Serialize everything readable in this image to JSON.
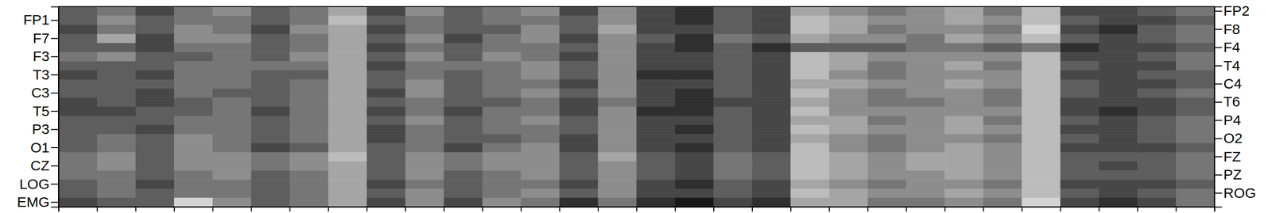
{
  "chart_data": {
    "type": "heatmap",
    "categories": [
      "FP2",
      "FP1",
      "F8",
      "F7",
      "F4",
      "F3",
      "T4",
      "T3",
      "C4",
      "C3",
      "T6",
      "T5",
      "P4",
      "P3",
      "O2",
      "O1",
      "FZ",
      "CZ",
      "PZ",
      "LOG",
      "ROG",
      "EMG"
    ],
    "xlim": [
      0,
      30
    ],
    "xticks": [
      0,
      1,
      2,
      3,
      4,
      5,
      6,
      7,
      8,
      9,
      10,
      11,
      12,
      13,
      14,
      15,
      16,
      17,
      18,
      19,
      20,
      21,
      22,
      23,
      24,
      25,
      26,
      27,
      28,
      29,
      30
    ],
    "tick_labels": "y",
    "color_range": [
      0,
      1
    ],
    "values": [
      [
        0.6,
        0.5,
        0.7,
        0.5,
        0.4,
        0.6,
        0.5,
        0.3,
        0.7,
        0.4,
        0.6,
        0.5,
        0.4,
        0.7,
        0.4,
        0.7,
        0.8,
        0.6,
        0.7,
        0.3,
        0.4,
        0.5,
        0.4,
        0.3,
        0.5,
        0.2,
        0.7,
        0.7,
        0.6,
        0.5
      ],
      [
        0.6,
        0.4,
        0.6,
        0.5,
        0.5,
        0.6,
        0.5,
        0.2,
        0.6,
        0.5,
        0.6,
        0.5,
        0.5,
        0.6,
        0.4,
        0.7,
        0.8,
        0.6,
        0.7,
        0.2,
        0.3,
        0.4,
        0.4,
        0.3,
        0.4,
        0.2,
        0.6,
        0.7,
        0.7,
        0.6
      ],
      [
        0.7,
        0.5,
        0.6,
        0.4,
        0.5,
        0.7,
        0.4,
        0.3,
        0.7,
        0.5,
        0.6,
        0.6,
        0.4,
        0.6,
        0.3,
        0.7,
        0.7,
        0.6,
        0.7,
        0.2,
        0.3,
        0.5,
        0.4,
        0.4,
        0.5,
        0.1,
        0.7,
        0.8,
        0.6,
        0.5
      ],
      [
        0.6,
        0.3,
        0.7,
        0.4,
        0.4,
        0.6,
        0.5,
        0.3,
        0.6,
        0.4,
        0.7,
        0.5,
        0.4,
        0.7,
        0.4,
        0.6,
        0.8,
        0.5,
        0.6,
        0.3,
        0.4,
        0.4,
        0.5,
        0.3,
        0.4,
        0.2,
        0.6,
        0.7,
        0.6,
        0.5
      ],
      [
        0.6,
        0.6,
        0.7,
        0.5,
        0.5,
        0.6,
        0.5,
        0.3,
        0.7,
        0.5,
        0.6,
        0.5,
        0.5,
        0.6,
        0.4,
        0.7,
        0.8,
        0.6,
        0.8,
        0.6,
        0.6,
        0.6,
        0.5,
        0.5,
        0.6,
        0.5,
        0.8,
        0.7,
        0.7,
        0.6
      ],
      [
        0.5,
        0.4,
        0.6,
        0.6,
        0.5,
        0.6,
        0.4,
        0.3,
        0.6,
        0.4,
        0.6,
        0.4,
        0.5,
        0.7,
        0.4,
        0.7,
        0.7,
        0.6,
        0.7,
        0.2,
        0.3,
        0.4,
        0.4,
        0.4,
        0.4,
        0.2,
        0.7,
        0.7,
        0.6,
        0.5
      ],
      [
        0.6,
        0.6,
        0.6,
        0.5,
        0.5,
        0.5,
        0.5,
        0.3,
        0.7,
        0.5,
        0.5,
        0.5,
        0.4,
        0.6,
        0.4,
        0.7,
        0.7,
        0.6,
        0.7,
        0.2,
        0.3,
        0.5,
        0.4,
        0.3,
        0.5,
        0.2,
        0.6,
        0.7,
        0.7,
        0.5
      ],
      [
        0.7,
        0.6,
        0.7,
        0.5,
        0.5,
        0.6,
        0.6,
        0.3,
        0.6,
        0.5,
        0.6,
        0.5,
        0.4,
        0.6,
        0.4,
        0.8,
        0.8,
        0.6,
        0.7,
        0.2,
        0.4,
        0.5,
        0.4,
        0.4,
        0.4,
        0.2,
        0.7,
        0.7,
        0.6,
        0.6
      ],
      [
        0.6,
        0.6,
        0.6,
        0.5,
        0.5,
        0.6,
        0.5,
        0.3,
        0.6,
        0.4,
        0.6,
        0.5,
        0.5,
        0.7,
        0.4,
        0.7,
        0.7,
        0.6,
        0.7,
        0.3,
        0.3,
        0.4,
        0.4,
        0.3,
        0.4,
        0.2,
        0.6,
        0.7,
        0.7,
        0.6
      ],
      [
        0.6,
        0.6,
        0.7,
        0.5,
        0.6,
        0.6,
        0.5,
        0.3,
        0.7,
        0.4,
        0.6,
        0.5,
        0.4,
        0.6,
        0.4,
        0.7,
        0.8,
        0.6,
        0.7,
        0.2,
        0.4,
        0.5,
        0.4,
        0.4,
        0.5,
        0.2,
        0.6,
        0.7,
        0.6,
        0.5
      ],
      [
        0.7,
        0.6,
        0.7,
        0.6,
        0.5,
        0.6,
        0.5,
        0.3,
        0.6,
        0.5,
        0.6,
        0.6,
        0.5,
        0.7,
        0.5,
        0.7,
        0.8,
        0.7,
        0.7,
        0.3,
        0.4,
        0.5,
        0.5,
        0.4,
        0.5,
        0.2,
        0.7,
        0.7,
        0.7,
        0.6
      ],
      [
        0.7,
        0.7,
        0.6,
        0.6,
        0.5,
        0.7,
        0.5,
        0.3,
        0.7,
        0.5,
        0.7,
        0.5,
        0.5,
        0.7,
        0.4,
        0.8,
        0.8,
        0.6,
        0.7,
        0.2,
        0.4,
        0.4,
        0.4,
        0.4,
        0.4,
        0.2,
        0.7,
        0.8,
        0.7,
        0.6
      ],
      [
        0.6,
        0.6,
        0.6,
        0.5,
        0.5,
        0.6,
        0.5,
        0.3,
        0.6,
        0.4,
        0.6,
        0.5,
        0.4,
        0.6,
        0.4,
        0.7,
        0.7,
        0.6,
        0.7,
        0.3,
        0.3,
        0.5,
        0.4,
        0.3,
        0.5,
        0.2,
        0.6,
        0.7,
        0.6,
        0.5
      ],
      [
        0.6,
        0.6,
        0.7,
        0.5,
        0.5,
        0.6,
        0.5,
        0.3,
        0.7,
        0.5,
        0.6,
        0.5,
        0.5,
        0.6,
        0.4,
        0.7,
        0.8,
        0.6,
        0.7,
        0.2,
        0.3,
        0.4,
        0.4,
        0.3,
        0.4,
        0.2,
        0.7,
        0.7,
        0.6,
        0.5
      ],
      [
        0.6,
        0.5,
        0.6,
        0.4,
        0.5,
        0.6,
        0.5,
        0.3,
        0.7,
        0.5,
        0.6,
        0.6,
        0.5,
        0.7,
        0.4,
        0.7,
        0.7,
        0.6,
        0.7,
        0.3,
        0.4,
        0.5,
        0.4,
        0.4,
        0.5,
        0.2,
        0.6,
        0.7,
        0.6,
        0.5
      ],
      [
        0.6,
        0.5,
        0.6,
        0.4,
        0.5,
        0.7,
        0.6,
        0.3,
        0.6,
        0.5,
        0.7,
        0.5,
        0.4,
        0.7,
        0.4,
        0.7,
        0.8,
        0.6,
        0.7,
        0.2,
        0.4,
        0.5,
        0.4,
        0.3,
        0.4,
        0.2,
        0.7,
        0.7,
        0.7,
        0.6
      ],
      [
        0.5,
        0.4,
        0.6,
        0.4,
        0.4,
        0.5,
        0.4,
        0.2,
        0.6,
        0.4,
        0.5,
        0.4,
        0.4,
        0.6,
        0.3,
        0.6,
        0.7,
        0.5,
        0.6,
        0.2,
        0.3,
        0.4,
        0.3,
        0.3,
        0.4,
        0.2,
        0.6,
        0.6,
        0.6,
        0.5
      ],
      [
        0.5,
        0.4,
        0.6,
        0.4,
        0.4,
        0.5,
        0.4,
        0.3,
        0.6,
        0.4,
        0.5,
        0.4,
        0.4,
        0.6,
        0.4,
        0.6,
        0.7,
        0.5,
        0.6,
        0.2,
        0.3,
        0.4,
        0.3,
        0.3,
        0.4,
        0.2,
        0.6,
        0.7,
        0.6,
        0.5
      ],
      [
        0.5,
        0.5,
        0.6,
        0.5,
        0.4,
        0.6,
        0.5,
        0.3,
        0.6,
        0.4,
        0.6,
        0.5,
        0.4,
        0.6,
        0.4,
        0.6,
        0.7,
        0.5,
        0.6,
        0.2,
        0.3,
        0.4,
        0.4,
        0.3,
        0.4,
        0.2,
        0.6,
        0.6,
        0.6,
        0.5
      ],
      [
        0.6,
        0.5,
        0.7,
        0.5,
        0.5,
        0.6,
        0.5,
        0.3,
        0.7,
        0.5,
        0.6,
        0.5,
        0.5,
        0.7,
        0.4,
        0.7,
        0.8,
        0.6,
        0.7,
        0.3,
        0.4,
        0.5,
        0.4,
        0.4,
        0.5,
        0.2,
        0.7,
        0.7,
        0.7,
        0.6
      ],
      [
        0.6,
        0.5,
        0.6,
        0.5,
        0.5,
        0.6,
        0.5,
        0.3,
        0.6,
        0.4,
        0.6,
        0.5,
        0.4,
        0.6,
        0.4,
        0.7,
        0.7,
        0.6,
        0.7,
        0.2,
        0.3,
        0.4,
        0.4,
        0.3,
        0.4,
        0.2,
        0.6,
        0.7,
        0.6,
        0.5
      ],
      [
        0.7,
        0.6,
        0.6,
        0.1,
        0.4,
        0.6,
        0.5,
        0.3,
        0.7,
        0.4,
        0.7,
        0.4,
        0.5,
        0.8,
        0.5,
        0.8,
        0.9,
        0.7,
        0.8,
        0.3,
        0.3,
        0.5,
        0.5,
        0.4,
        0.5,
        0.1,
        0.7,
        0.8,
        0.7,
        0.5
      ]
    ]
  }
}
